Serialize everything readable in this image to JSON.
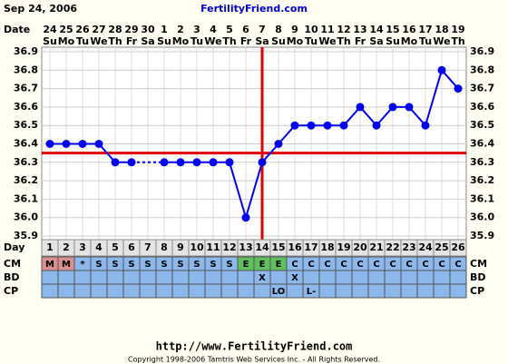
{
  "header": {
    "date": "Sep 24, 2006",
    "site": "FertilityFriend.com"
  },
  "chart_data": {
    "type": "line",
    "x_label": "Date",
    "categories": [
      "24",
      "25",
      "26",
      "27",
      "28",
      "29",
      "30",
      "1",
      "2",
      "3",
      "4",
      "5",
      "6",
      "7",
      "8",
      "9",
      "10",
      "11",
      "12",
      "13",
      "14",
      "15",
      "16",
      "17",
      "18",
      "19"
    ],
    "weekdays": [
      "Su",
      "Mo",
      "Tu",
      "We",
      "Th",
      "Fr",
      "Sa",
      "Su",
      "Mo",
      "Tu",
      "We",
      "Th",
      "Fr",
      "Sa",
      "Su",
      "Mo",
      "Tu",
      "We",
      "Th",
      "Fr",
      "Sa",
      "Su",
      "Mo",
      "Tu",
      "We",
      "Th"
    ],
    "series": [
      {
        "color": "#0000ee",
        "values": [
          36.4,
          36.4,
          36.4,
          36.4,
          36.3,
          36.3,
          null,
          36.3,
          36.3,
          36.3,
          36.3,
          36.3,
          36.0,
          36.3,
          36.4,
          36.5,
          36.5,
          36.5,
          36.5,
          36.6,
          36.5,
          36.6,
          36.6,
          36.5,
          36.8,
          36.7
        ]
      }
    ],
    "ylim": [
      35.9,
      36.9
    ],
    "yticks": [
      35.9,
      {
        "value": 36,
        "label": "36.0"
      },
      36.1,
      36.2,
      36.3,
      36.4,
      36.5,
      36.6,
      36.7,
      36.8,
      36.9
    ],
    "grid": true,
    "coverline": 36.35,
    "ovulation_day": 14,
    "marker_line_color": "#dd0000",
    "cycle_day_label": "Day",
    "cycle_days": [
      1,
      2,
      3,
      4,
      5,
      6,
      7,
      8,
      9,
      10,
      11,
      12,
      13,
      14,
      15,
      16,
      17,
      18,
      19,
      20,
      21,
      22,
      23,
      24,
      25,
      26
    ],
    "rows": [
      {
        "label": "CM",
        "highlight_colors": {
          "M": "#d89090",
          "E": "#60c060"
        },
        "cells": [
          "M",
          "M",
          "*",
          "S",
          "S",
          "S",
          "S",
          "S",
          "S",
          "S",
          "S",
          "S",
          "E",
          "E",
          "E",
          "C",
          "C",
          "C",
          "C",
          "C",
          "C",
          "C",
          "C",
          "C",
          "C",
          "C"
        ]
      },
      {
        "label": "BD",
        "cells": [
          null,
          null,
          null,
          null,
          null,
          null,
          null,
          null,
          null,
          null,
          null,
          null,
          null,
          "X",
          null,
          "X",
          null,
          null,
          null,
          null,
          null,
          null,
          null,
          null,
          null,
          null
        ]
      },
      {
        "label": "CP",
        "cells": [
          null,
          null,
          null,
          null,
          null,
          null,
          null,
          null,
          null,
          null,
          null,
          null,
          null,
          null,
          "LO",
          null,
          "L-",
          null,
          null,
          null,
          null,
          null,
          null,
          null,
          null,
          null
        ]
      }
    ]
  },
  "footer": {
    "url": "http://www.FertilityFriend.com",
    "copyright": "Copyright 1998-2006 Tamtris Web Services Inc. - All Rights Reserved."
  }
}
